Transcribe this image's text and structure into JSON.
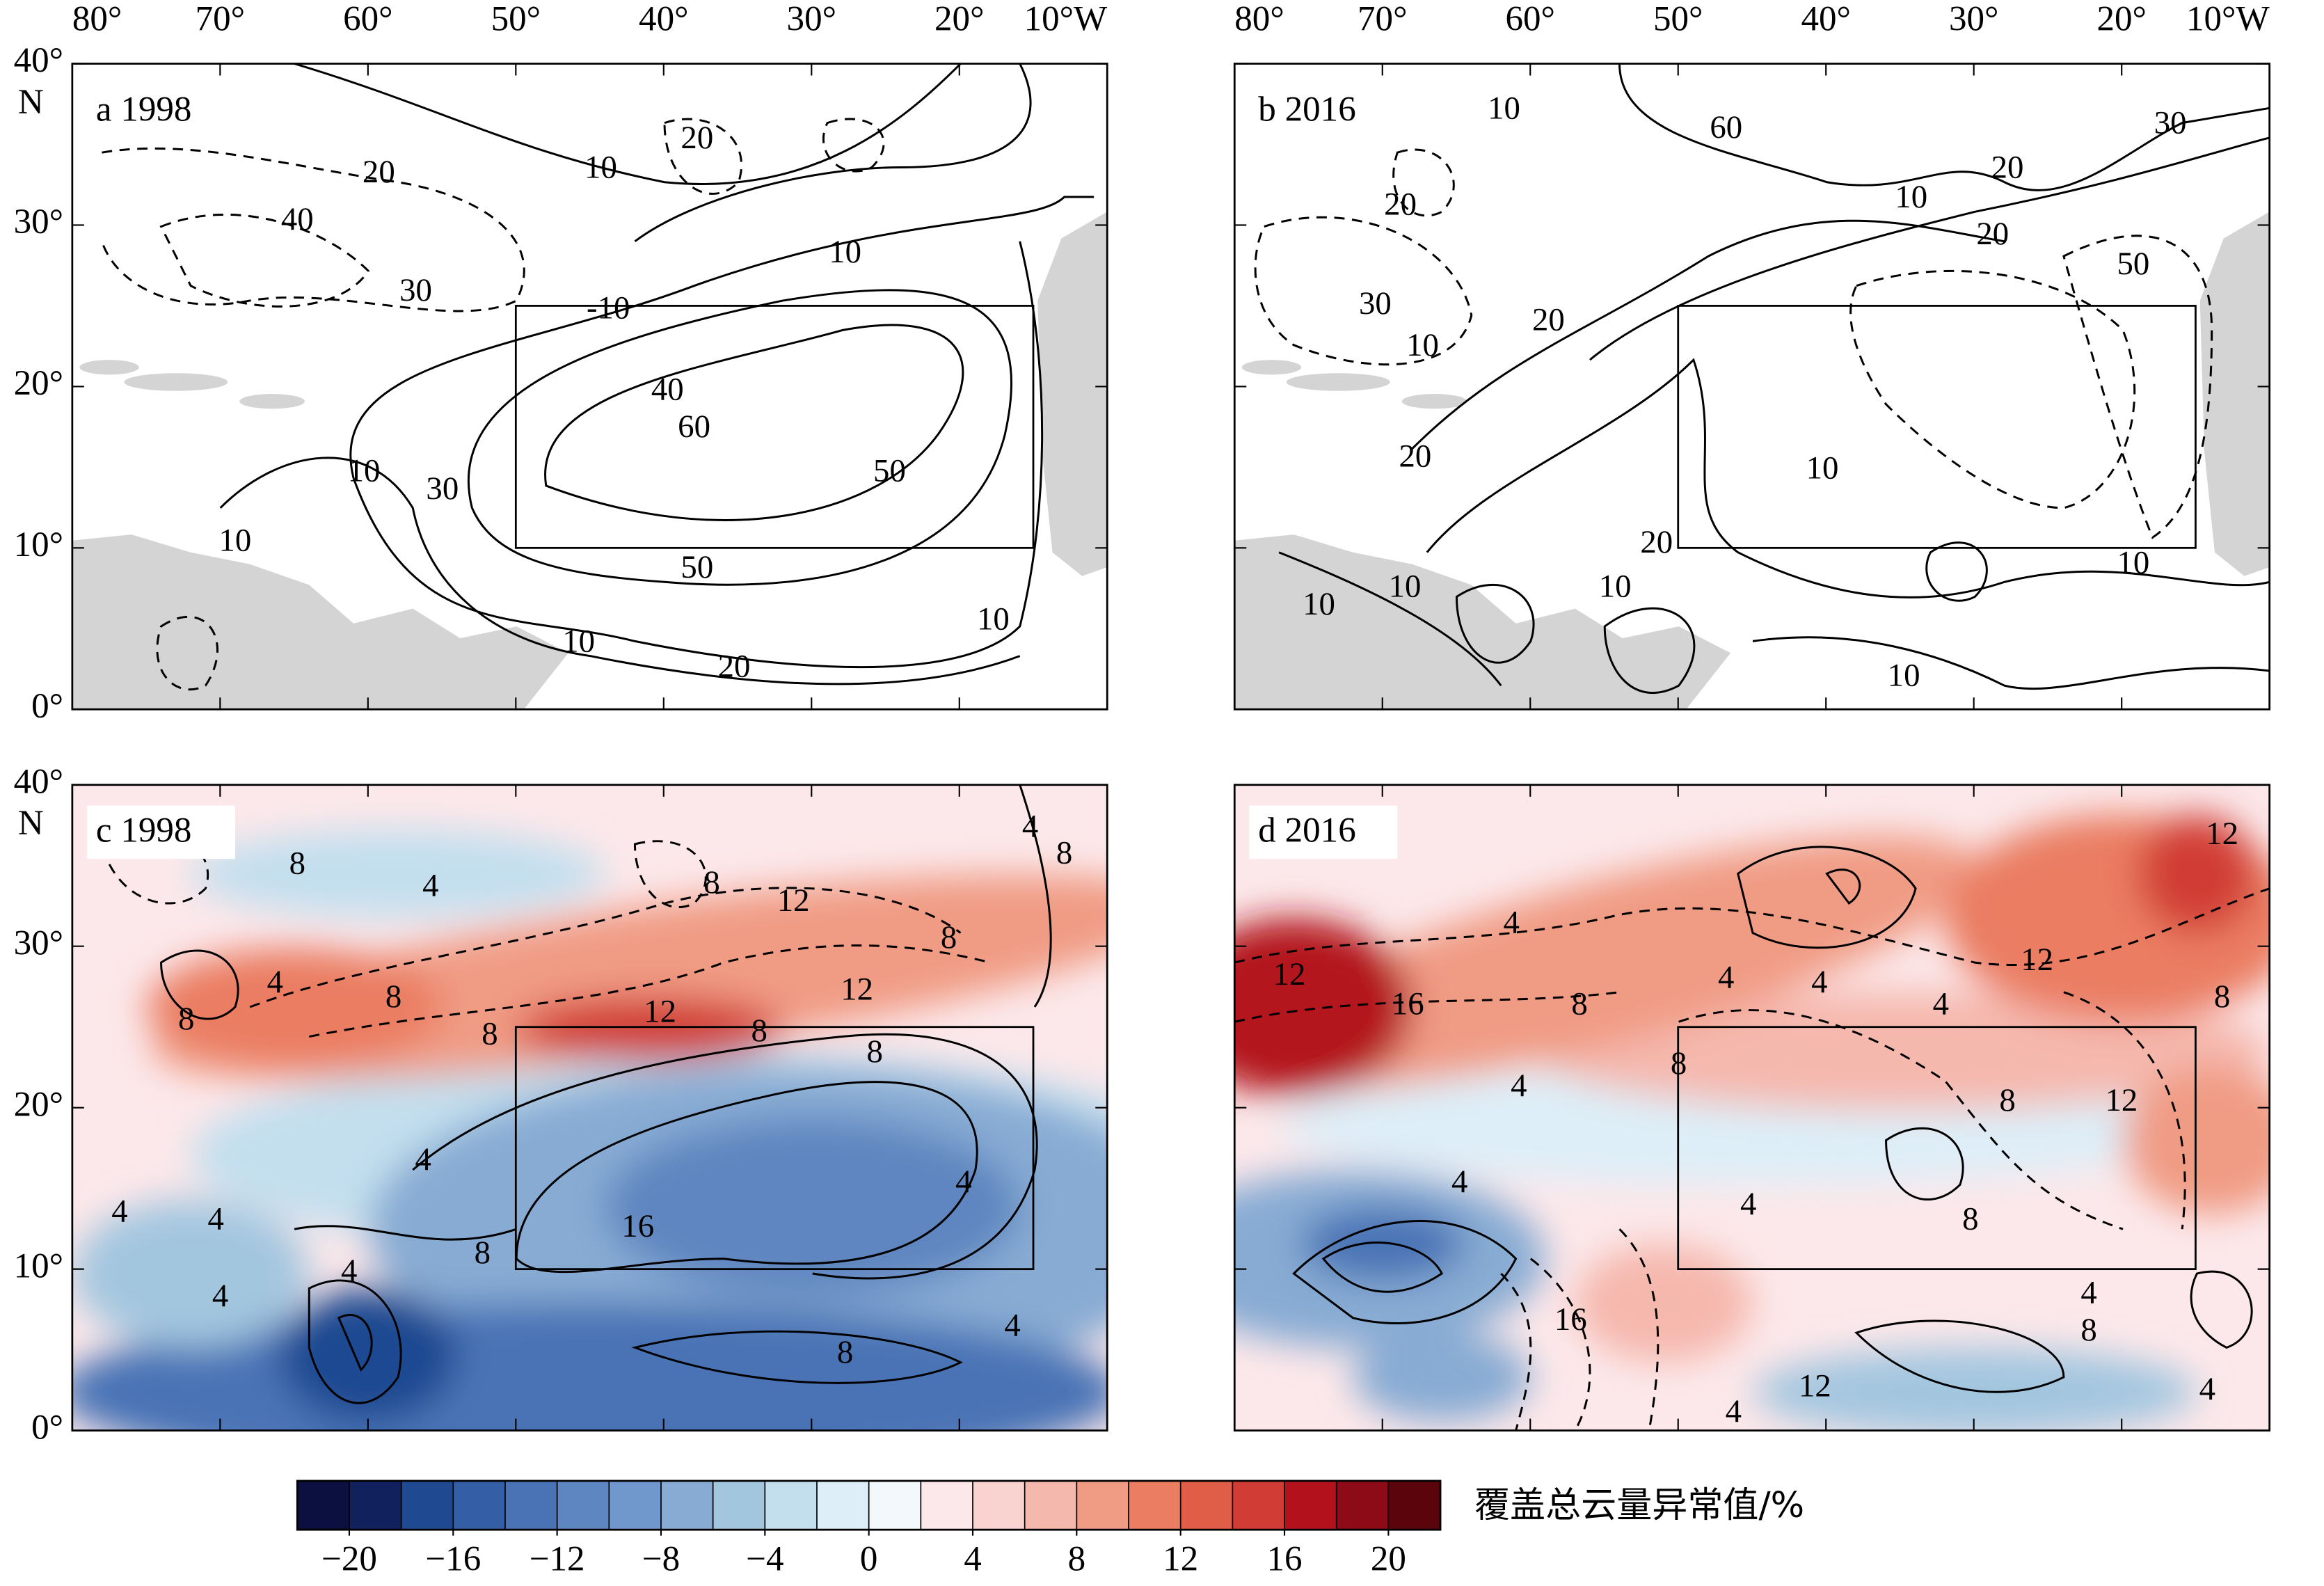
{
  "panels": [
    {
      "label": "a 1998",
      "contour_labels": [
        "20",
        "20",
        "40",
        "10",
        "30",
        "-10",
        "10",
        "40",
        "60",
        "10",
        "30",
        "50",
        "10",
        "50",
        "10",
        "10",
        "20"
      ]
    },
    {
      "label": "b 2016",
      "contour_labels": [
        "10",
        "60",
        "20",
        "10",
        "30",
        "20",
        "20",
        "50",
        "30",
        "10",
        "20",
        "20",
        "10",
        "20",
        "10",
        "10",
        "10",
        "10",
        "10"
      ]
    },
    {
      "label": "c 1998",
      "contour_labels": [
        "8",
        "4",
        "8",
        "12",
        "8",
        "8",
        "4",
        "4",
        "8",
        "8",
        "12",
        "8",
        "8",
        "12",
        "8",
        "4",
        "4",
        "16",
        "8",
        "4",
        "4",
        "4",
        "8",
        "4",
        "4"
      ]
    },
    {
      "label": "d 2016",
      "contour_labels": [
        "12",
        "4",
        "16",
        "12",
        "4",
        "4",
        "8",
        "12",
        "4",
        "8",
        "8",
        "4",
        "8",
        "12",
        "4",
        "4",
        "8",
        "16",
        "4",
        "8",
        "12",
        "4",
        "4"
      ]
    }
  ],
  "lon_ticks": [
    {
      "value": 80,
      "label": "80°"
    },
    {
      "value": 70,
      "label": "70°"
    },
    {
      "value": 60,
      "label": "60°"
    },
    {
      "value": 50,
      "label": "50°"
    },
    {
      "value": 40,
      "label": "40°"
    },
    {
      "value": 30,
      "label": "30°"
    },
    {
      "value": 20,
      "label": "20°"
    },
    {
      "value": 10,
      "label": "10°W"
    }
  ],
  "lat_ticks": [
    {
      "value": 0,
      "label": "0°"
    },
    {
      "value": 10,
      "label": "10°"
    },
    {
      "value": 20,
      "label": "20°"
    },
    {
      "value": 30,
      "label": "30°"
    },
    {
      "value": 40,
      "label": "40°"
    }
  ],
  "lat_hemisphere": "N",
  "colorbar": {
    "label": "覆盖总云量异常值/%",
    "lim": [
      -22,
      22
    ],
    "ticks": [
      {
        "value": -20,
        "label": "−20"
      },
      {
        "value": -16,
        "label": "−16"
      },
      {
        "value": -12,
        "label": "−12"
      },
      {
        "value": -8,
        "label": "−8"
      },
      {
        "value": -4,
        "label": "−4"
      },
      0,
      4,
      8,
      12,
      16,
      20
    ],
    "colors": [
      "#0b1040",
      "#10215e",
      "#1f4a91",
      "#345fa7",
      "#4a73b5",
      "#5e86c0",
      "#7198cc",
      "#87abd3",
      "#a3c6df",
      "#c3dfee",
      "#ddeef8",
      "#f3f8fc",
      "#fce8ea",
      "#f9d3d0",
      "#f5b8ad",
      "#f09b84",
      "#ea7d62",
      "#e05e48",
      "#d13c35",
      "#b3121d",
      "#8c0b16",
      "#5c040c"
    ]
  }
}
